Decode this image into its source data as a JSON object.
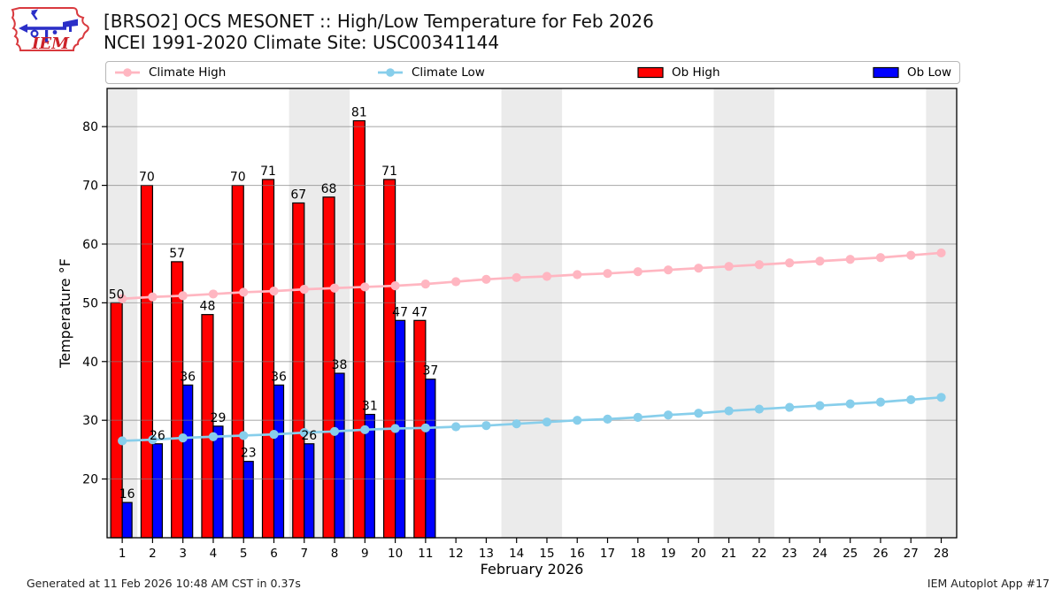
{
  "header": {
    "title_line1": "[BRSO2] OCS MESONET :: High/Low Temperature for Feb 2026",
    "title_line2": "NCEI 1991-2020 Climate Site: USC00341144",
    "logo_text": "IEM"
  },
  "legend": {
    "items": [
      {
        "label": "Climate High",
        "type": "line",
        "color": "#ffb6c1"
      },
      {
        "label": "Climate Low",
        "type": "line",
        "color": "#87ceeb"
      },
      {
        "label": "Ob High",
        "type": "rect",
        "color": "#ff0000"
      },
      {
        "label": "Ob Low",
        "type": "rect",
        "color": "#0000ff"
      }
    ]
  },
  "footer": {
    "left": "Generated at 11 Feb 2026 10:48 AM CST in 0.37s",
    "right": "IEM Autoplot App #17"
  },
  "chart_data": {
    "type": "bar",
    "title": "[BRSO2] OCS MESONET :: High/Low Temperature for Feb 2026",
    "subtitle": "NCEI 1991-2020 Climate Site: USC00341144",
    "xlabel": "February 2026",
    "ylabel": "Temperature °F",
    "x": [
      1,
      2,
      3,
      4,
      5,
      6,
      7,
      8,
      9,
      10,
      11,
      12,
      13,
      14,
      15,
      16,
      17,
      18,
      19,
      20,
      21,
      22,
      23,
      24,
      25,
      26,
      27,
      28
    ],
    "xlim": [
      0.5,
      28.51
    ],
    "ylim": [
      10,
      86.5
    ],
    "yticks": [
      20,
      30,
      40,
      50,
      60,
      70,
      80
    ],
    "grid": true,
    "band_color": "#ebebeb",
    "grid_color": "rgba(125,125,125,0.6)",
    "weekend_bands": [
      [
        0.5,
        1.5
      ],
      [
        6.5,
        8.5
      ],
      [
        13.5,
        15.5
      ],
      [
        20.5,
        22.5
      ],
      [
        27.5,
        28.51
      ]
    ],
    "series": [
      {
        "name": "Ob High",
        "type": "bar",
        "color": "#ff0000",
        "values": [
          50,
          70,
          57,
          48,
          70,
          71,
          67,
          68,
          81,
          71,
          47
        ]
      },
      {
        "name": "Ob Low",
        "type": "bar",
        "color": "#0000ff",
        "values": [
          16,
          26,
          36,
          29,
          23,
          36,
          26,
          38,
          31,
          47,
          37
        ]
      },
      {
        "name": "Climate High",
        "type": "line",
        "color": "#ffb6c1",
        "values": [
          50.7,
          51.0,
          51.2,
          51.5,
          51.8,
          52.0,
          52.3,
          52.5,
          52.7,
          52.9,
          53.2,
          53.6,
          54.0,
          54.3,
          54.5,
          54.8,
          55.0,
          55.3,
          55.6,
          55.9,
          56.2,
          56.5,
          56.8,
          57.1,
          57.4,
          57.7,
          58.1,
          58.5
        ]
      },
      {
        "name": "Climate Low",
        "type": "line",
        "color": "#87ceeb",
        "values": [
          26.5,
          26.7,
          27.0,
          27.2,
          27.4,
          27.6,
          27.9,
          28.1,
          28.4,
          28.6,
          28.7,
          28.9,
          29.1,
          29.4,
          29.7,
          30.0,
          30.2,
          30.5,
          30.9,
          31.2,
          31.6,
          31.9,
          32.2,
          32.5,
          32.8,
          33.1,
          33.5,
          33.9
        ]
      }
    ]
  }
}
